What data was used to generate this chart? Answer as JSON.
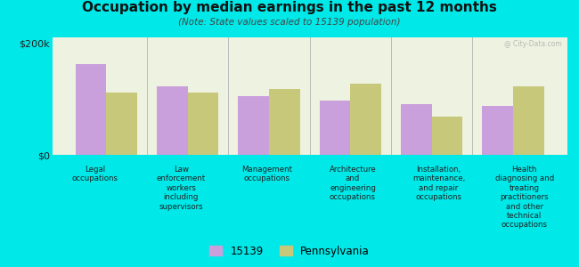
{
  "title": "Occupation by median earnings in the past 12 months",
  "subtitle": "(Note: State values scaled to 15139 population)",
  "background_outer": "#00e8e8",
  "background_plot": "#eef2e0",
  "categories": [
    "Legal\noccupations",
    "Law\nenforcement\nworkers\nincluding\nsupervisors",
    "Management\noccupations",
    "Architecture\nand\nengineering\noccupations",
    "Installation,\nmaintenance,\nand repair\noccupations",
    "Health\ndiagnosing and\ntreating\npractitioners\nand other\ntechnical\noccupations"
  ],
  "values_15139": [
    163000,
    122000,
    105000,
    97000,
    90000,
    88000
  ],
  "values_pa": [
    112000,
    112000,
    118000,
    128000,
    68000,
    122000
  ],
  "color_15139": "#c9a0dc",
  "color_pa": "#c8c87a",
  "ylim": [
    0,
    210000
  ],
  "yticks": [
    0,
    200000
  ],
  "ytick_labels": [
    "$0",
    "$200k"
  ],
  "legend_15139": "15139",
  "legend_pa": "Pennsylvania",
  "bar_width": 0.38
}
